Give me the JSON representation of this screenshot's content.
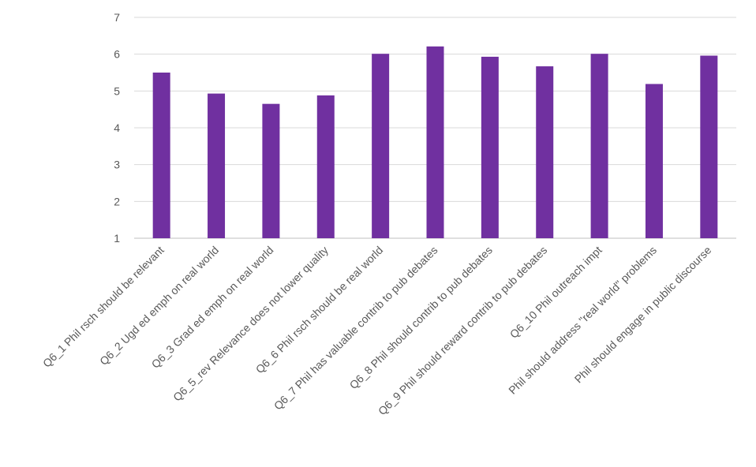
{
  "chart_data": {
    "type": "bar",
    "title": "",
    "xlabel": "",
    "ylabel": "",
    "ylim": [
      1,
      7
    ],
    "yticks": [
      "1",
      "2",
      "3",
      "4",
      "5",
      "6",
      "7"
    ],
    "grid": true,
    "legend": "none",
    "bar_color": "#7030a0",
    "categories": [
      "Q6_1 Phil rsch should be relevant",
      "Q6_2 Ugd ed emph on real world",
      "Q6_3 Grad ed emph on real world",
      "Q6_5_rev Relevance does not lower quality",
      "Q6_6 Phil rsch should be real world",
      "Q6_7 Phil has valuable contrib to pub debates",
      "Q6_8 Phil should contrib to pub debates",
      "Q6_9 Phil should reward contrib to pub debates",
      "Q6_10 Phil outreach impt",
      "Phil should address \"real world\" problems",
      "Phil should engage in public discourse"
    ],
    "values": [
      5.5,
      4.93,
      4.65,
      4.88,
      6.01,
      6.21,
      5.93,
      5.67,
      6.01,
      5.19,
      5.96
    ]
  }
}
